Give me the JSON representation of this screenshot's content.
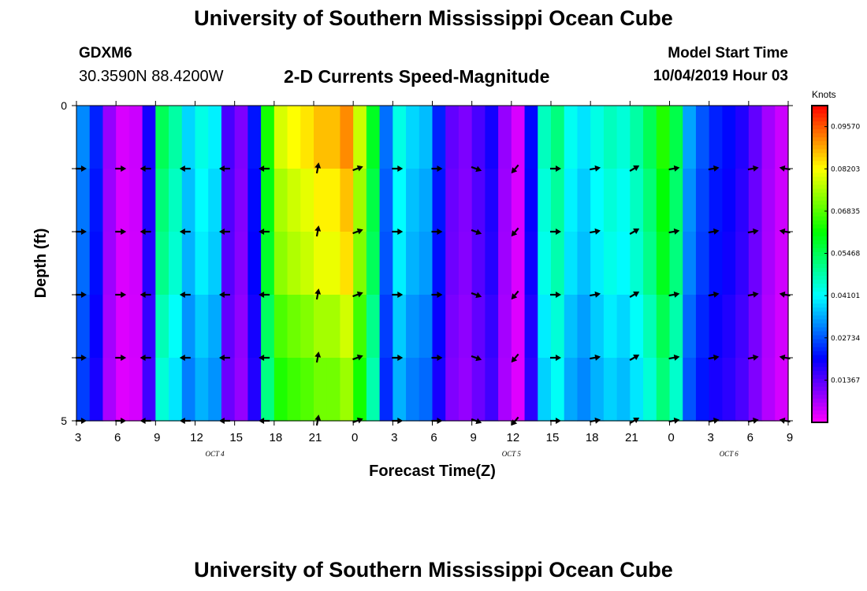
{
  "header": {
    "title": "University of Southern Mississippi Ocean Cube",
    "station_id": "GDXM6",
    "coords": "30.3590N 88.4200W",
    "chart_title": "2-D Currents Speed-Magnitude",
    "model_start_label": "Model Start Time",
    "model_start_time": "10/04/2019 Hour 03"
  },
  "footer": {
    "title": "University of Southern Mississippi Ocean Cube"
  },
  "chart_data": {
    "type": "heatmap",
    "title": "2-D Currents Speed-Magnitude",
    "xlabel": "Forecast Time(Z)",
    "ylabel": "Depth (ft)",
    "ylim": [
      0,
      5
    ],
    "y_ticks": [
      "0",
      "5"
    ],
    "x_tick_labels": [
      "3",
      "6",
      "9",
      "12",
      "15",
      "18",
      "21",
      "0",
      "3",
      "6",
      "9",
      "12",
      "15",
      "18",
      "21",
      "0",
      "3",
      "6",
      "9"
    ],
    "date_labels": [
      {
        "text": "OCT 4",
        "at_tick": 3.5
      },
      {
        "text": "OCT 5",
        "at_tick": 11
      },
      {
        "text": "OCT 6",
        "at_tick": 16.5
      }
    ],
    "colorbar": {
      "label": "Knots",
      "min": 0,
      "max": 0.1025,
      "tick_labels": [
        "0.09570",
        "0.08203",
        "0.06835",
        "0.05468",
        "0.04101",
        "0.02734",
        "0.01367"
      ]
    },
    "hours": 54,
    "depth_levels": 5,
    "speed_profile": [
      0.03,
      0.022,
      0.008,
      0.003,
      0.004,
      0.018,
      0.052,
      0.046,
      0.036,
      0.041,
      0.038,
      0.014,
      0.01,
      0.021,
      0.06,
      0.075,
      0.078,
      0.08,
      0.083,
      0.083,
      0.087,
      0.074,
      0.056,
      0.028,
      0.041,
      0.036,
      0.034,
      0.022,
      0.012,
      0.01,
      0.014,
      0.018,
      0.008,
      0.003,
      0.02,
      0.044,
      0.049,
      0.04,
      0.037,
      0.041,
      0.044,
      0.042,
      0.046,
      0.052,
      0.061,
      0.053,
      0.032,
      0.026,
      0.022,
      0.02,
      0.017,
      0.012,
      0.007,
      0.004
    ],
    "depth_factors": [
      1.05,
      1.0,
      0.97,
      0.9,
      0.85
    ],
    "vector_times_hours": [
      0,
      3,
      5,
      8,
      11,
      14,
      18,
      21,
      24,
      27,
      30,
      33,
      36,
      39,
      42,
      45,
      48,
      51,
      53.5
    ],
    "vector_directions_deg": [
      0,
      0,
      180,
      180,
      180,
      180,
      80,
      20,
      0,
      0,
      340,
      230,
      0,
      10,
      30,
      10,
      10,
      10,
      170
    ]
  }
}
